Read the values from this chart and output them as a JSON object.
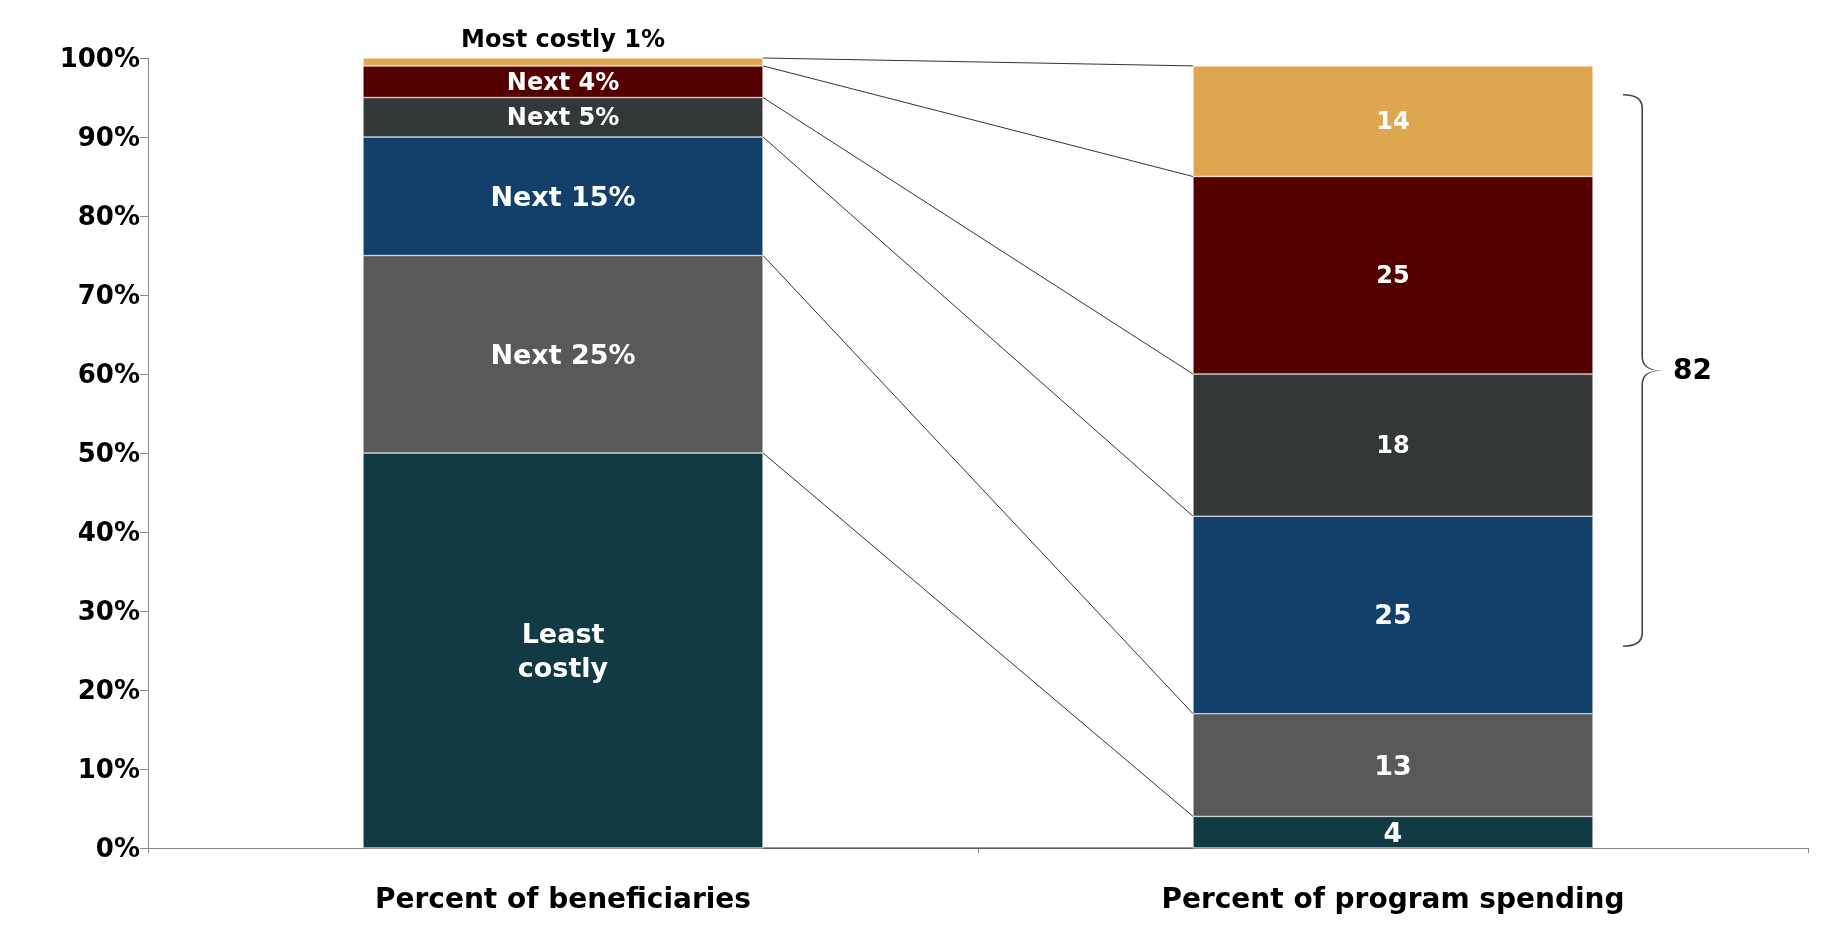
{
  "chart_data": {
    "type": "bar",
    "stacked": true,
    "categories": [
      "Percent of beneficiaries",
      "Percent of program spending"
    ],
    "series": [
      {
        "name": "Least costly",
        "color": "#123a45",
        "values": [
          50,
          4
        ],
        "value_labels": [
          null,
          "4"
        ]
      },
      {
        "name": "Next 25%",
        "color": "#595959",
        "values": [
          25,
          13
        ],
        "value_labels": [
          null,
          "13"
        ]
      },
      {
        "name": "Next 15%",
        "color": "#12406a",
        "values": [
          15,
          25
        ],
        "value_labels": [
          null,
          "25"
        ]
      },
      {
        "name": "Next 5%",
        "color": "#333738",
        "values": [
          5,
          18
        ],
        "value_labels": [
          null,
          "18"
        ]
      },
      {
        "name": "Next 4%",
        "color": "#550000",
        "values": [
          4,
          25
        ],
        "value_labels": [
          null,
          "25"
        ]
      },
      {
        "name": "Most costly 1%",
        "color": "#dea74f",
        "values": [
          1,
          14
        ],
        "value_labels": [
          null,
          "14"
        ]
      }
    ],
    "ylim": [
      0,
      100
    ],
    "yticks": [
      {
        "value": 0,
        "label": "0%"
      },
      {
        "value": 10,
        "label": "10%"
      },
      {
        "value": 20,
        "label": "20%"
      },
      {
        "value": 30,
        "label": "30%"
      },
      {
        "value": 40,
        "label": "40%"
      },
      {
        "value": 50,
        "label": "50%"
      },
      {
        "value": 60,
        "label": "60%"
      },
      {
        "value": 70,
        "label": "70%"
      },
      {
        "value": 80,
        "label": "80%"
      },
      {
        "value": 90,
        "label": "90%"
      },
      {
        "value": 100,
        "label": "100%"
      }
    ],
    "annotations": [
      "82"
    ],
    "grid": false,
    "legend": false
  }
}
